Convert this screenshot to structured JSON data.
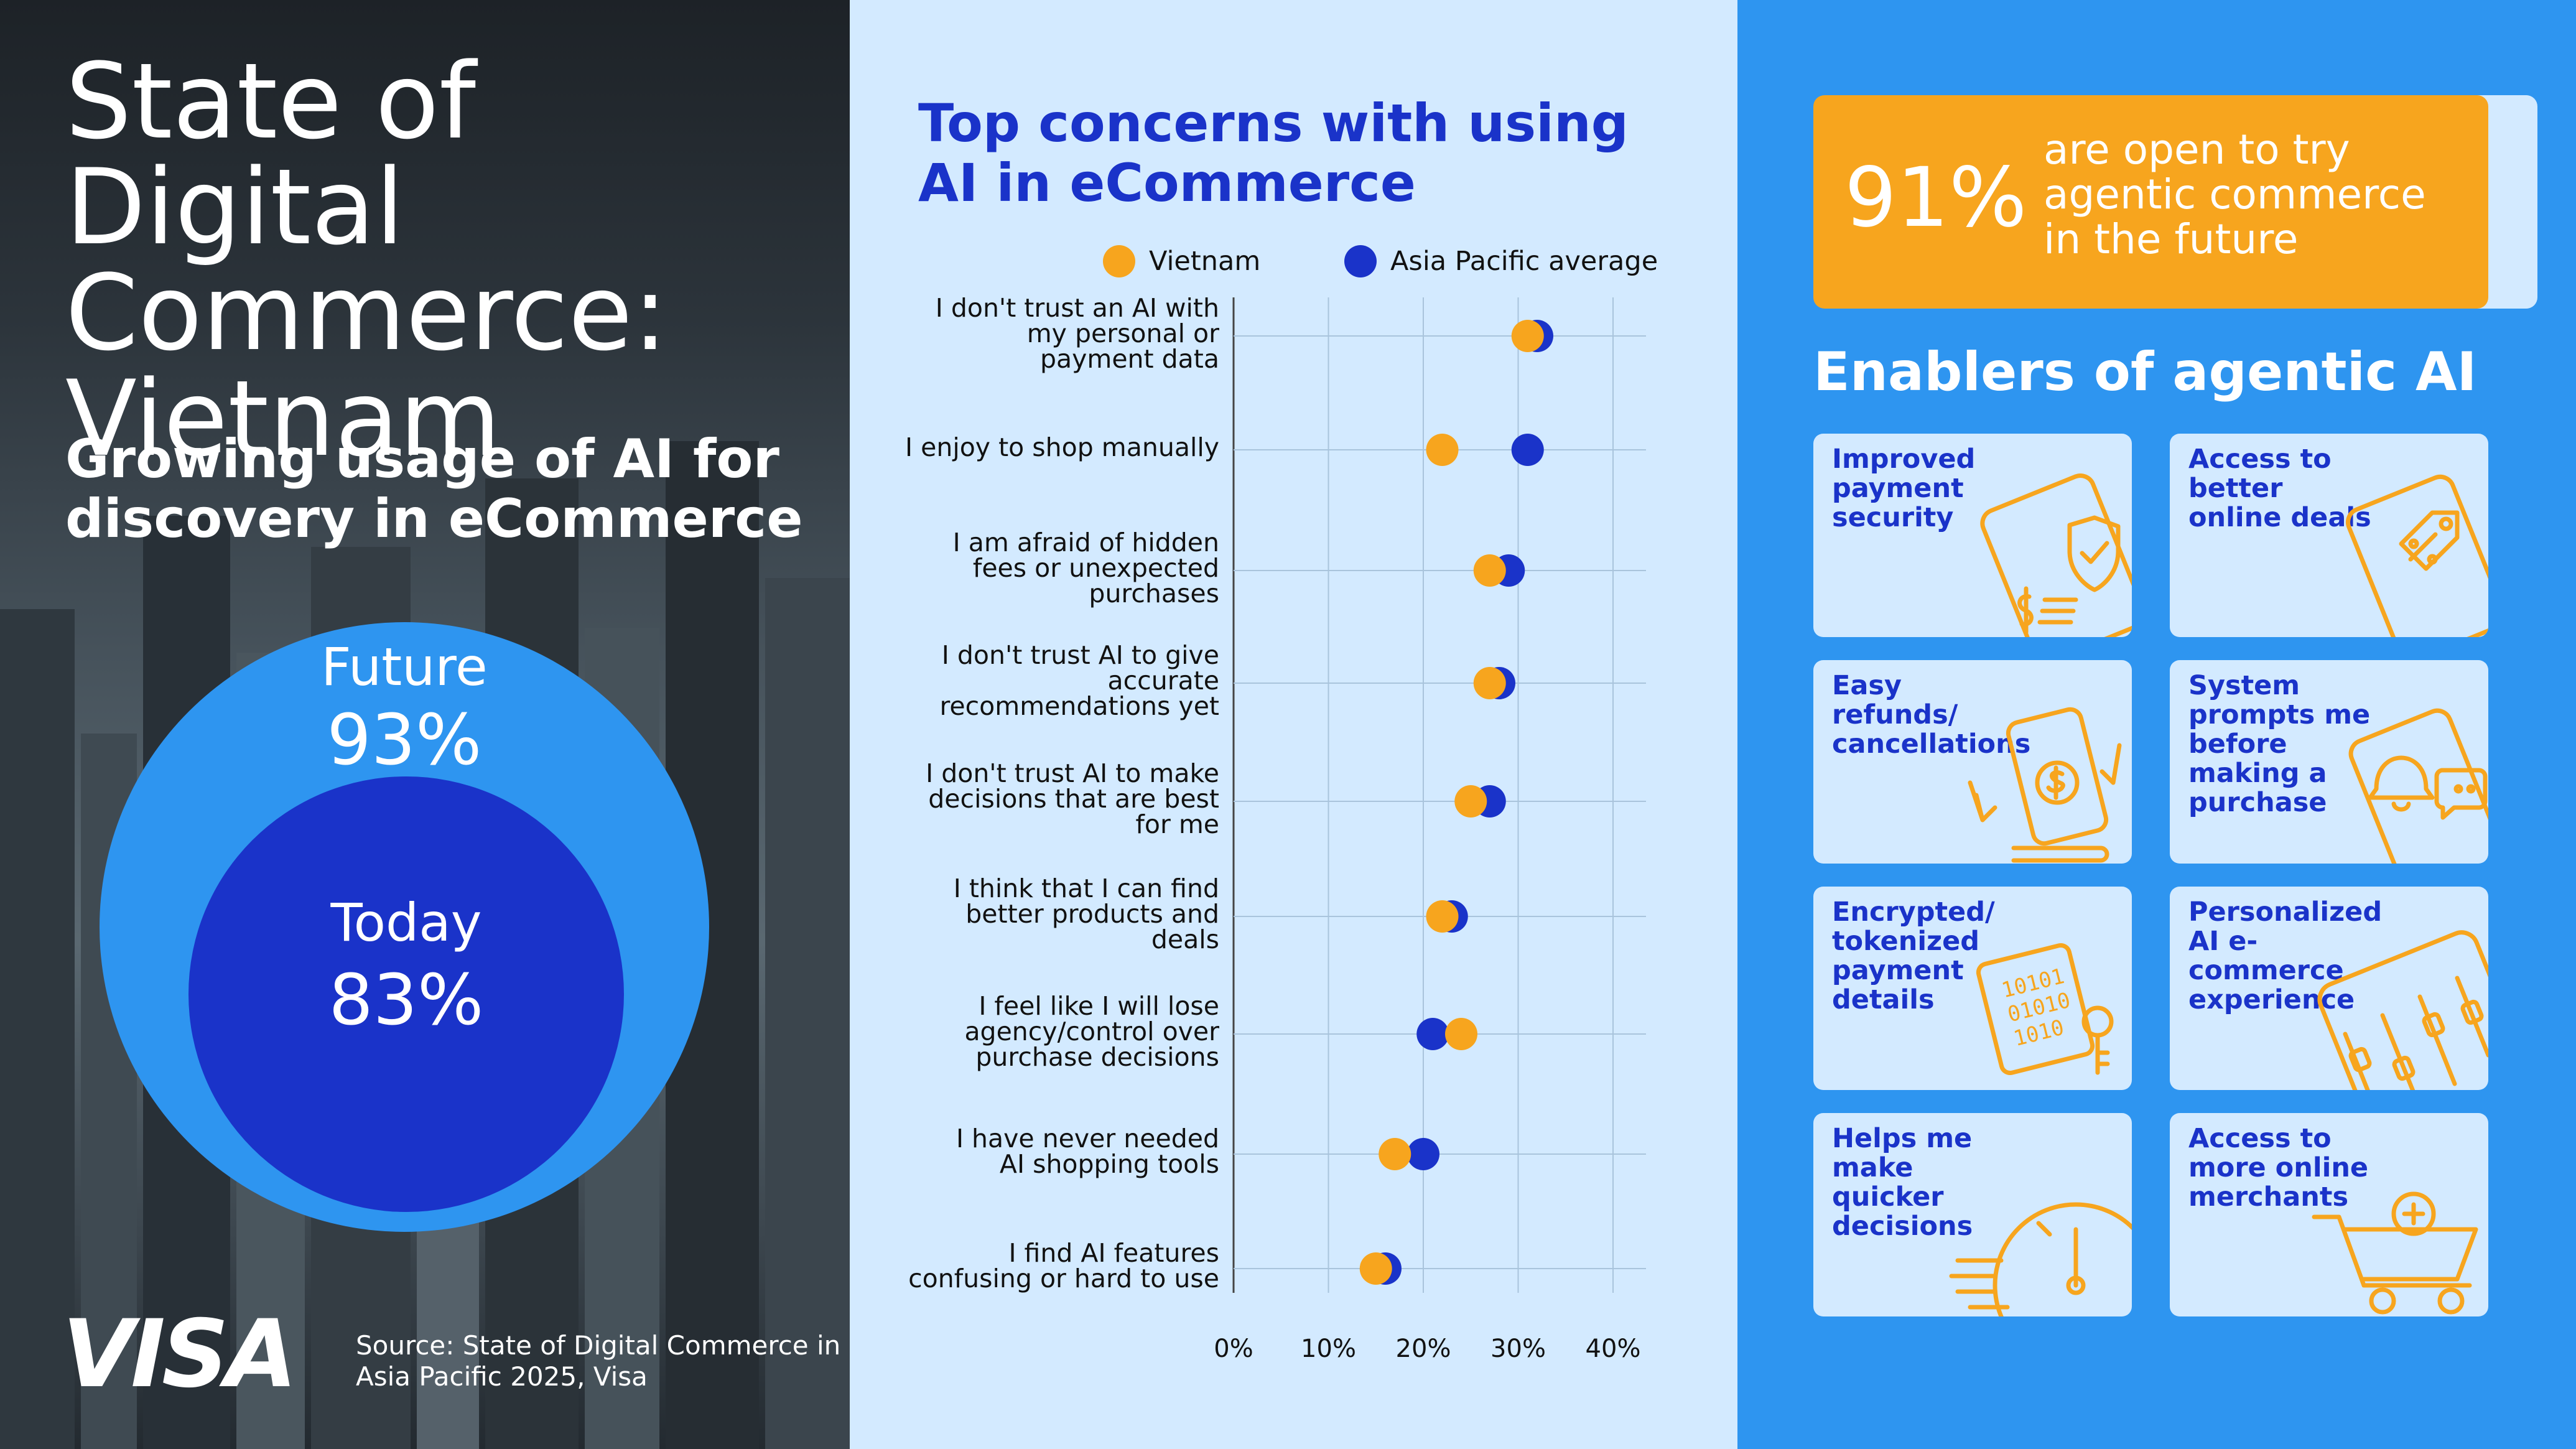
{
  "left_panel": {
    "title": "State of Digital Commerce: Vietnam",
    "subtitle": "Growing usage of AI for discovery in eCommerce",
    "future": {
      "label": "Future",
      "value": "93%"
    },
    "today": {
      "label": "Today",
      "value": "83%"
    },
    "logo": "VISA",
    "source": "Source: State of Digital Commerce in Asia Pacific 2025, Visa"
  },
  "chart_data": {
    "type": "scatter",
    "title": "Top concerns with using AI in eCommerce",
    "xlabel": "",
    "ylabel": "",
    "xlim": [
      0,
      40
    ],
    "x_ticks": [
      "0%",
      "10%",
      "20%",
      "30%",
      "40%"
    ],
    "legend_position": "top",
    "grid": true,
    "categories": [
      "I don't trust an AI with my personal or payment data",
      "I enjoy to shop manually",
      "I am afraid of hidden fees or unexpected purchases",
      "I don't trust AI to give accurate recommendations yet",
      "I don't trust AI to make decisions that are best for me",
      "I think that I can find better products and deals",
      "I feel like I will lose agency/control over purchase decisions",
      "I have never needed AI shopping tools",
      "I find AI features confusing or hard to use"
    ],
    "category_lines": [
      [
        "I don't trust an AI with",
        "my personal or",
        "payment data"
      ],
      [
        "I enjoy to shop manually"
      ],
      [
        "I am afraid of hidden",
        "fees or unexpected",
        "purchases"
      ],
      [
        "I don't trust AI to give",
        "accurate",
        "recommendations yet"
      ],
      [
        "I don't trust AI to make",
        "decisions that are best",
        "for me"
      ],
      [
        "I think that I can find",
        "better products and",
        "deals"
      ],
      [
        "I feel like I will lose",
        "agency/control over",
        "purchase decisions"
      ],
      [
        "I have never needed",
        "AI shopping tools"
      ],
      [
        "I find AI features",
        "confusing or hard to use"
      ]
    ],
    "series": [
      {
        "name": "Asia Pacific average",
        "color": "#1a33c9",
        "values": [
          32,
          31,
          29,
          28,
          27,
          23,
          21,
          20,
          16
        ]
      },
      {
        "name": "Vietnam",
        "color": "#f7a51e",
        "values": [
          31,
          22,
          27,
          27,
          25,
          22,
          24,
          17,
          15
        ]
      }
    ]
  },
  "right_panel": {
    "stat_value": "91%",
    "stat_text": "are open to try agentic commerce in the future",
    "enablers_title": "Enablers of agentic AI",
    "cards": [
      {
        "label": "Improved payment security",
        "icon": "shield-check-icon"
      },
      {
        "label": "Access to better online deals",
        "icon": "price-tag-icon"
      },
      {
        "label": "Easy refunds/ cancellations",
        "icon": "refund-phone-icon"
      },
      {
        "label": "System prompts me before making a purchase",
        "icon": "bell-notification-icon"
      },
      {
        "label": "Encrypted/ tokenized payment details",
        "icon": "encrypted-document-icon"
      },
      {
        "label": "Personalized AI e-commerce experience",
        "icon": "sliders-icon"
      },
      {
        "label": "Helps me make quicker decisions",
        "icon": "stopwatch-icon"
      },
      {
        "label": "Access to more online merchants",
        "icon": "shopping-cart-icon"
      }
    ]
  },
  "colors": {
    "vietnam": "#f7a51e",
    "asia_pacific": "#1a33c9",
    "future_circle": "#2e95f0",
    "today_circle": "#1a33c9",
    "accent_blue": "#1a33c9",
    "light_blue": "#d3eaff",
    "icon_orange": "#f7a51e"
  }
}
